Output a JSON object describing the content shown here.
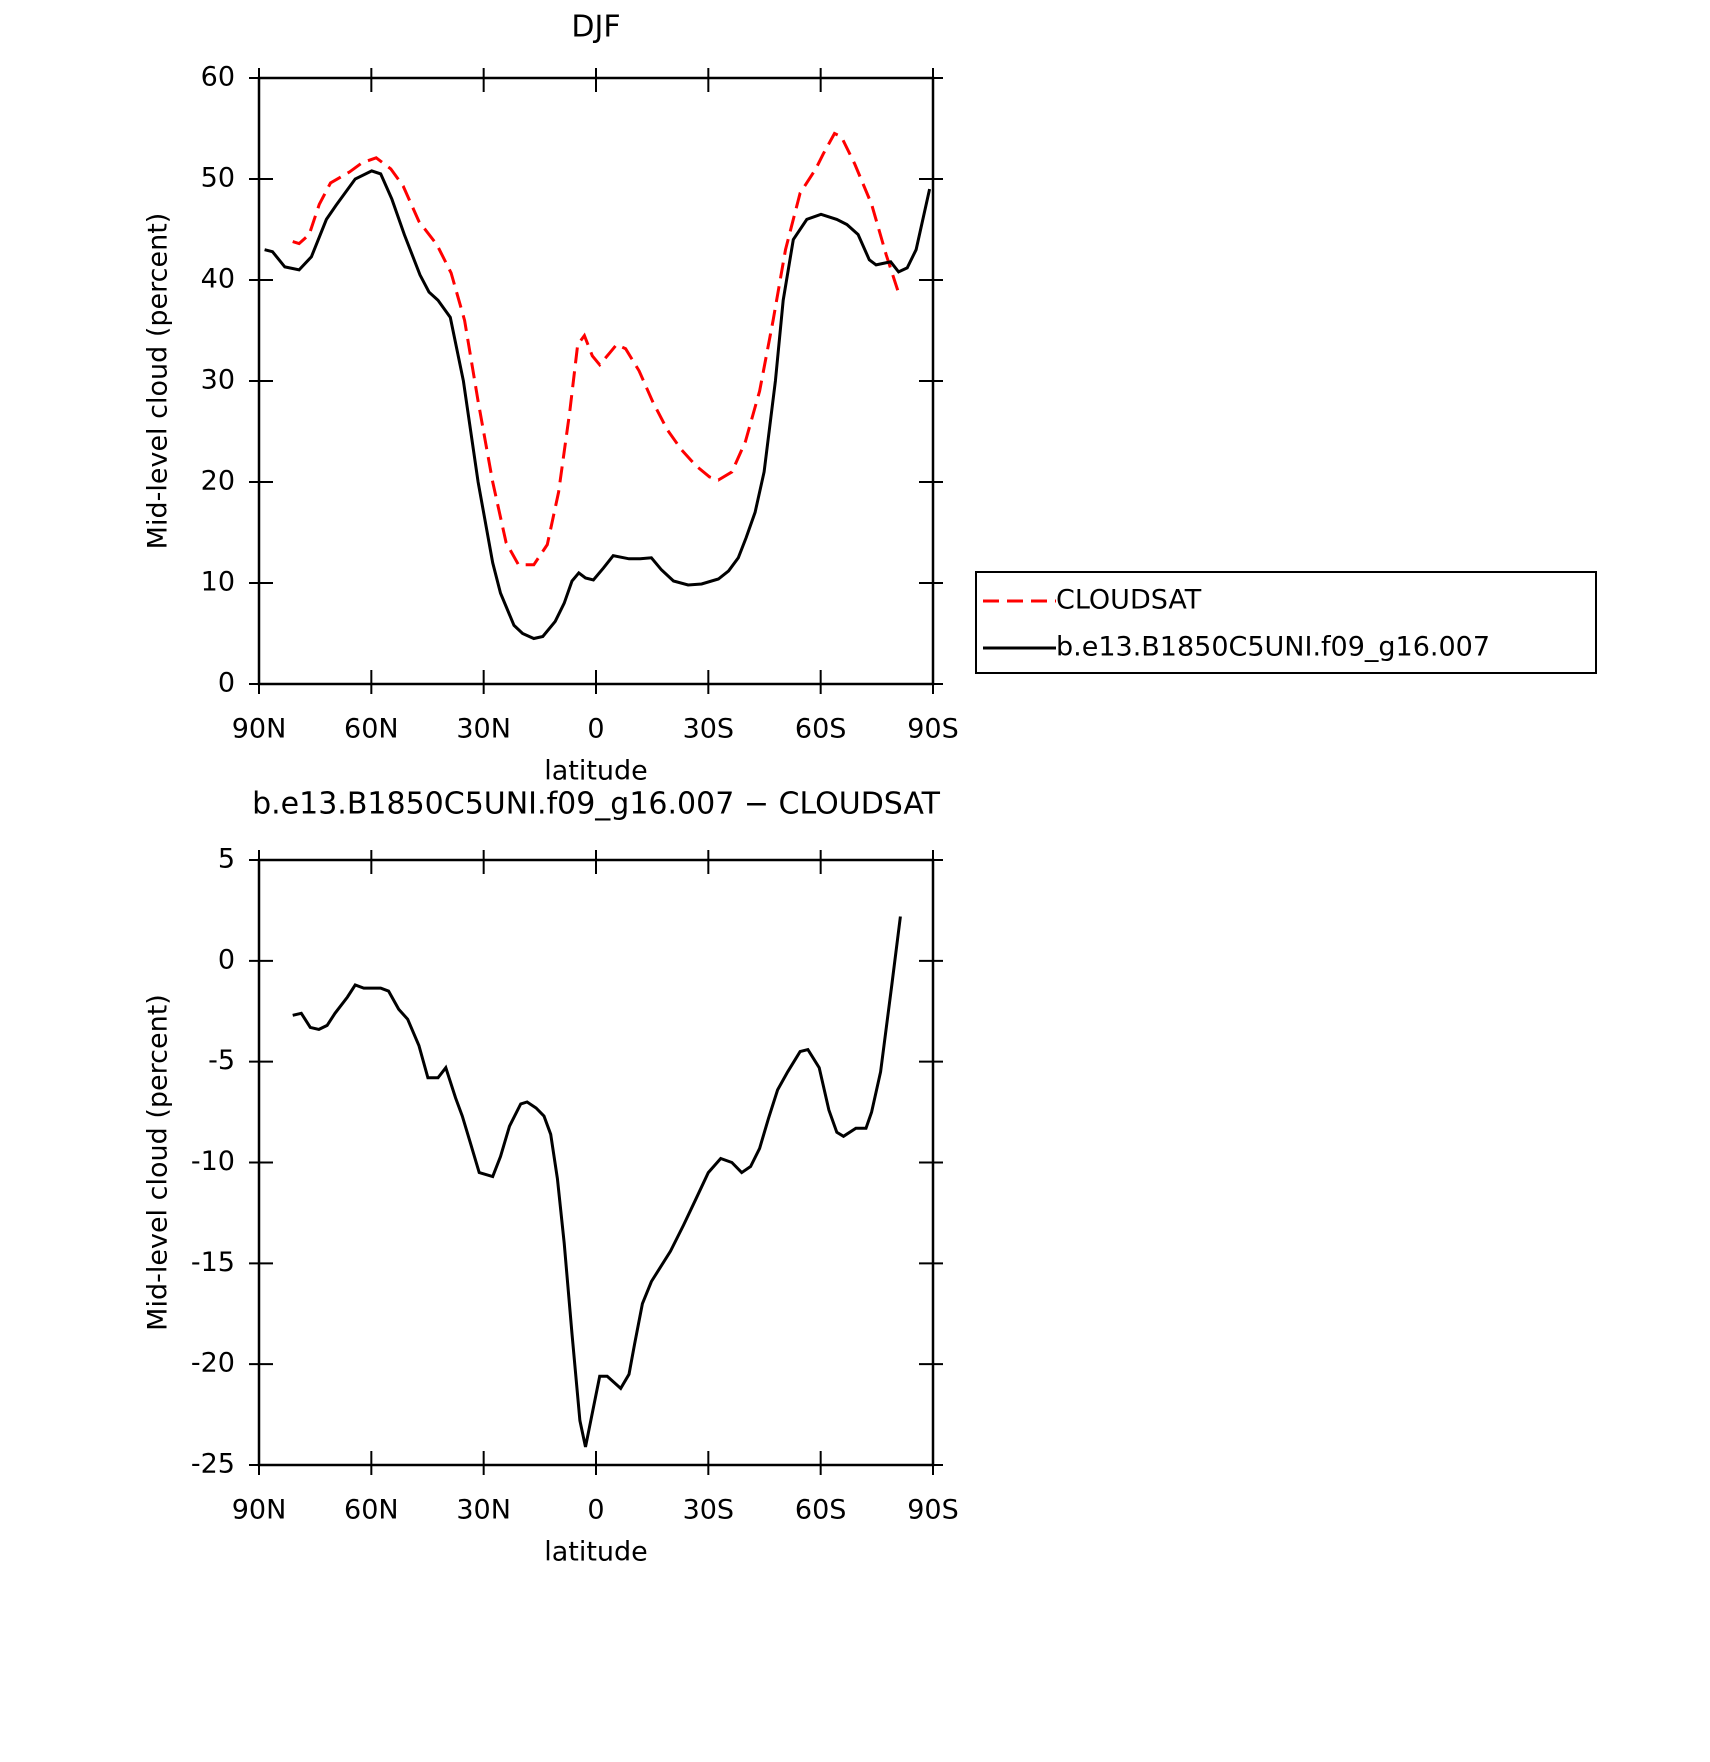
{
  "chart_data": [
    {
      "type": "line",
      "title": "DJF",
      "xlabel": "latitude",
      "ylabel": "Mid-level cloud (percent)",
      "xlim": [
        90,
        -90
      ],
      "ylim": [
        0,
        60
      ],
      "xticks": [
        {
          "value": 90,
          "label": "90N"
        },
        {
          "value": 60,
          "label": "60N"
        },
        {
          "value": 30,
          "label": "30N"
        },
        0,
        {
          "value": -30,
          "label": "30S"
        },
        {
          "value": -60,
          "label": "60S"
        },
        {
          "value": -90,
          "label": "90S"
        }
      ],
      "yticks": [
        0,
        10,
        20,
        30,
        40,
        50,
        60
      ],
      "legend": "outside-right",
      "series": [
        {
          "name": "CLOUDSAT",
          "color": "#ff0000",
          "dash": true,
          "x": [
            81,
            79.3,
            76.6,
            73.9,
            70.9,
            65.8,
            62.5,
            58.7,
            54.8,
            51.5,
            47.3,
            42.5,
            38.7,
            35.1,
            31.5,
            27.6,
            24,
            20.7,
            16.6,
            13,
            10,
            7,
            4.9,
            3.1,
            1,
            -1,
            -3.7,
            -5.5,
            -7.9,
            -11.5,
            -15.1,
            -19,
            -22.8,
            -26.7,
            -30.3,
            -32.7,
            -36.3,
            -39.9,
            -43.7,
            -47.3,
            -50.6,
            -54.5,
            -58.7,
            -60.7,
            -63.7,
            -65.5,
            -69.1,
            -73.6,
            -77.5,
            -81
          ],
          "values": [
            43.8,
            43.6,
            44.5,
            47.5,
            49.6,
            50.7,
            51.6,
            52.1,
            51,
            49.3,
            45.8,
            43.5,
            40.7,
            36,
            28,
            20,
            14,
            11.8,
            11.8,
            13.8,
            19,
            27,
            33.6,
            34.5,
            32.5,
            31.6,
            32.8,
            33.6,
            33.2,
            31,
            28,
            25.2,
            23.2,
            21.6,
            20.5,
            20.2,
            21,
            24,
            29,
            36,
            43,
            48.6,
            51,
            52.5,
            54.5,
            54.2,
            51.5,
            47.5,
            42.5,
            38.5
          ]
        },
        {
          "name": "b.e13.B1850C5UNI.f09_g16.007",
          "color": "#000000",
          "dash": false,
          "x": [
            88.5,
            86.4,
            83.1,
            79.3,
            76,
            72,
            69.4,
            64.3,
            59.9,
            57.5,
            54.5,
            51.2,
            47,
            44.6,
            42.2,
            38.9,
            35.4,
            31.5,
            27.6,
            25.5,
            21.9,
            19.6,
            16.6,
            14.2,
            10.9,
            8.5,
            6.4,
            4.6,
            2.8,
            0.7,
            -2,
            -4.6,
            -8.8,
            -11.8,
            -14.8,
            -17.5,
            -20.7,
            -24.6,
            -28.2,
            -32.7,
            -35.4,
            -38,
            -40.1,
            -42.5,
            -44.9,
            -47.9,
            -50,
            -52.7,
            -56.3,
            -60.1,
            -64.3,
            -67,
            -70,
            -73,
            -74.8,
            -78.7,
            -80.8,
            -83.1,
            -85.5,
            -89.1
          ],
          "values": [
            43,
            42.8,
            41.3,
            41,
            42.3,
            46,
            47.4,
            50,
            50.8,
            50.5,
            48,
            44.5,
            40.5,
            38.8,
            38,
            36.3,
            30,
            20,
            12,
            9,
            5.8,
            5,
            4.5,
            4.7,
            6.2,
            8,
            10.2,
            11,
            10.5,
            10.3,
            11.5,
            12.7,
            12.4,
            12.4,
            12.5,
            11.3,
            10.2,
            9.8,
            9.9,
            10.4,
            11.2,
            12.5,
            14.5,
            17,
            21,
            30,
            38,
            44,
            46,
            46.5,
            46,
            45.5,
            44.5,
            42,
            41.5,
            41.8,
            40.8,
            41.2,
            43,
            49
          ]
        }
      ]
    },
    {
      "type": "line",
      "title": "b.e13.B1850C5UNI.f09_g16.007 − CLOUDSAT",
      "xlabel": "latitude",
      "ylabel": "Mid-level cloud (percent)",
      "xlim": [
        90,
        -90
      ],
      "ylim": [
        -25,
        5
      ],
      "xticks": [
        {
          "value": 90,
          "label": "90N"
        },
        {
          "value": 60,
          "label": "60N"
        },
        {
          "value": 30,
          "label": "30N"
        },
        0,
        {
          "value": -30,
          "label": "30S"
        },
        {
          "value": -60,
          "label": "60S"
        },
        {
          "value": -90,
          "label": "90S"
        }
      ],
      "yticks": [
        -25,
        -20,
        -15,
        -10,
        -5,
        0,
        5
      ],
      "series": [
        {
          "color": "#000000",
          "dash": false,
          "x": [
            81,
            78.7,
            76.3,
            74,
            71.8,
            69.7,
            66.4,
            64.3,
            62,
            57.5,
            55.4,
            52.7,
            50.3,
            47.3,
            44.9,
            42.2,
            40.1,
            37.5,
            35.7,
            33.6,
            31.2,
            27.6,
            25.5,
            23.1,
            20.1,
            18.4,
            16,
            13.9,
            12.1,
            10.3,
            8.5,
            6.4,
            4.3,
            2.8,
            -1,
            -3,
            -6.6,
            -8.8,
            -10.3,
            -12.4,
            -14.8,
            -19.9,
            -23.4,
            -26.7,
            -30,
            -33.3,
            -36.3,
            -38.9,
            -41.3,
            -43.7,
            -46.1,
            -48.5,
            -51.2,
            -54.5,
            -56.6,
            -59.6,
            -62.2,
            -64.3,
            -66.1,
            -69.4,
            -72.1,
            -73.6,
            -76,
            -79,
            -81.3
          ],
          "values": [
            -2.7,
            -2.6,
            -3.3,
            -3.4,
            -3.2,
            -2.6,
            -1.8,
            -1.2,
            -1.35,
            -1.35,
            -1.5,
            -2.4,
            -2.9,
            -4.2,
            -5.8,
            -5.8,
            -5.3,
            -6.8,
            -7.7,
            -9,
            -10.5,
            -10.7,
            -9.7,
            -8.2,
            -7.1,
            -7,
            -7.3,
            -7.7,
            -8.6,
            -10.8,
            -14,
            -18.5,
            -22.8,
            -24.1,
            -20.6,
            -20.6,
            -21.2,
            -20.5,
            -19,
            -17,
            -15.9,
            -14.4,
            -13.1,
            -11.8,
            -10.5,
            -9.8,
            -10,
            -10.5,
            -10.2,
            -9.3,
            -7.8,
            -6.4,
            -5.5,
            -4.5,
            -4.4,
            -5.3,
            -7.4,
            -8.5,
            -8.7,
            -8.3,
            -8.3,
            -7.5,
            -5.5,
            -1.2,
            2.2
          ]
        }
      ]
    }
  ]
}
